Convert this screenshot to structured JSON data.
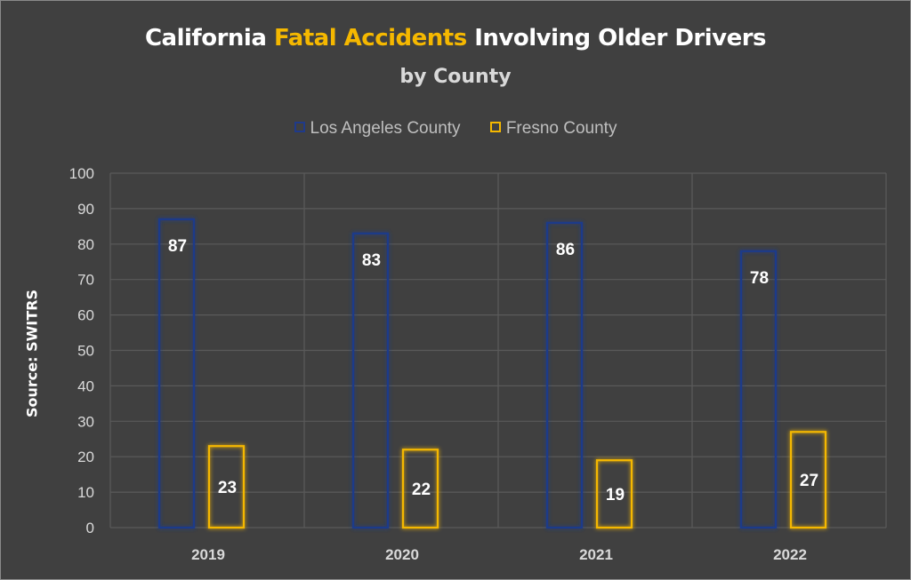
{
  "title": {
    "prefix": "California ",
    "highlight": "Fatal Accidents",
    "suffix": " Involving Older Drivers"
  },
  "subtitle": "by County",
  "ylabel": "Source: SWITRS",
  "colors": {
    "background": "#404040",
    "grid": "#5a5a5a",
    "los_angeles": "#1f3a8a",
    "fresno": "#f5b800",
    "text": "#ffffff",
    "axis_text": "#d9d9d9"
  },
  "chart_data": {
    "type": "bar",
    "categories": [
      "2019",
      "2020",
      "2021",
      "2022"
    ],
    "series": [
      {
        "name": "Los Angeles County",
        "values": [
          87,
          83,
          86,
          78
        ]
      },
      {
        "name": "Fresno County",
        "values": [
          23,
          22,
          19,
          27
        ]
      }
    ],
    "ylim": [
      0,
      100
    ],
    "yticks": [
      0,
      10,
      20,
      30,
      40,
      50,
      60,
      70,
      80,
      90,
      100
    ],
    "grid": true,
    "legend": "top"
  }
}
